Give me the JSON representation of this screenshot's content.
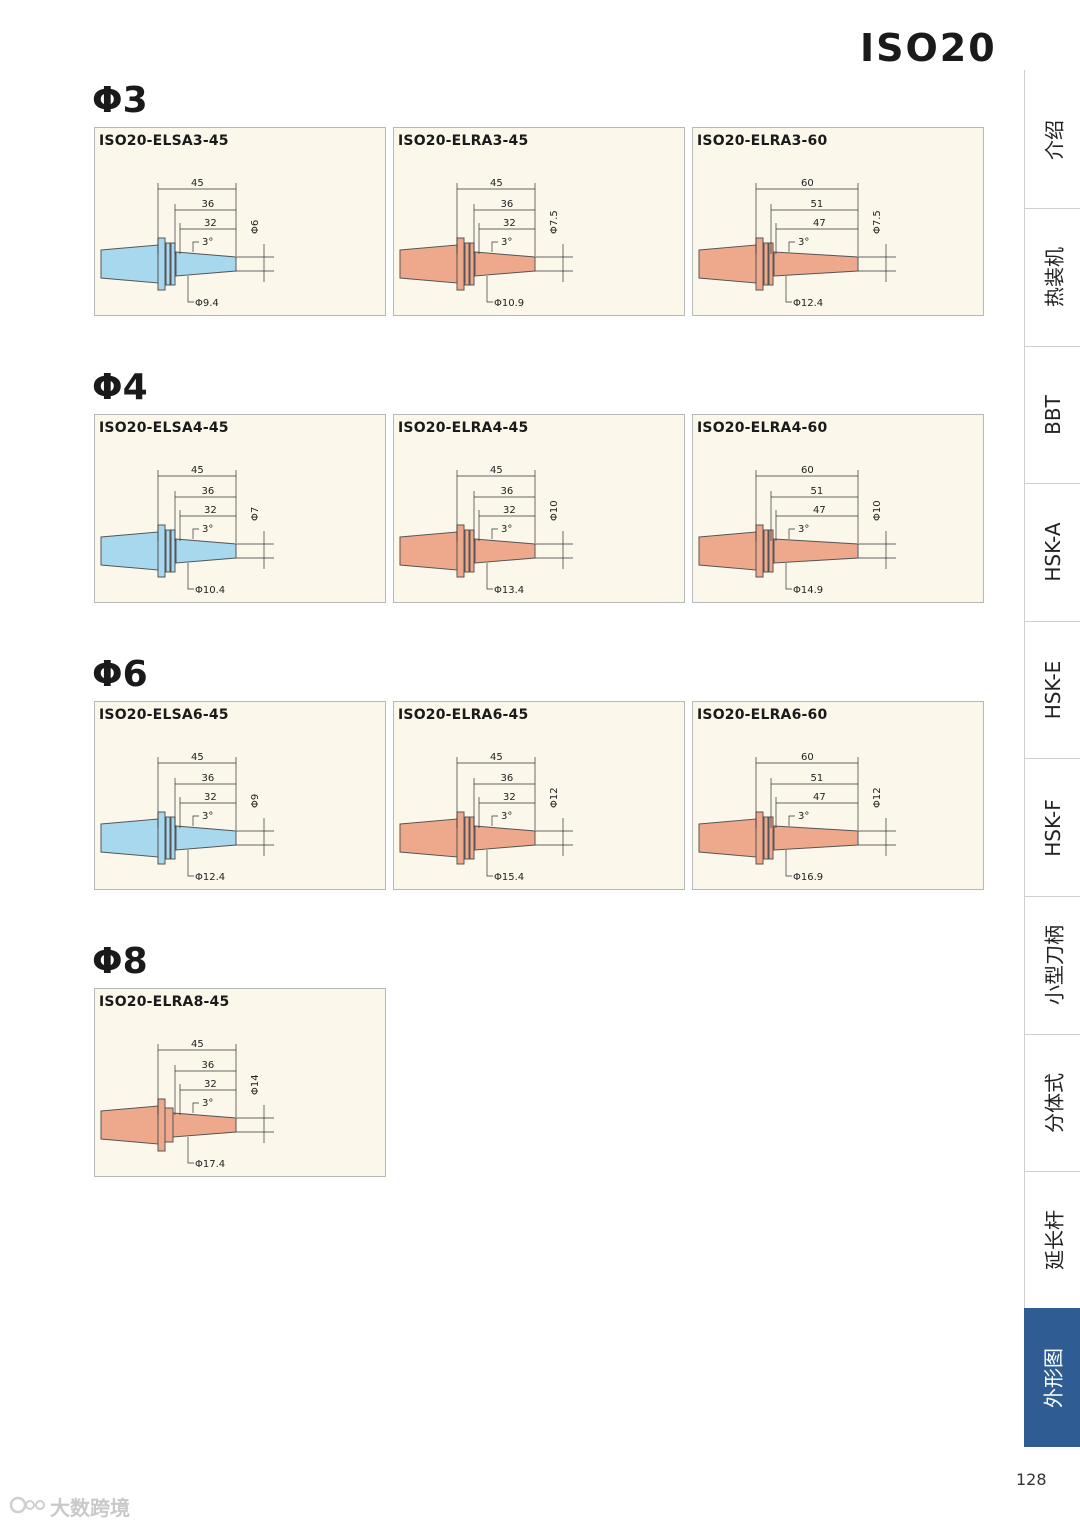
{
  "page_title": "ISO20",
  "page_number": "128",
  "watermark": "大数跨境",
  "colors": {
    "blue": "#a7d8ee",
    "salmon": "#eea98c",
    "accent": "#2f5d93"
  },
  "side_nav": {
    "items": [
      {
        "label": "介绍"
      },
      {
        "label": "热装机"
      },
      {
        "label": "BBT"
      },
      {
        "label": "HSK-A"
      },
      {
        "label": "HSK-E"
      },
      {
        "label": "HSK-F"
      },
      {
        "label": "小型刀柄"
      },
      {
        "label": "分体式"
      },
      {
        "label": "延长杆"
      },
      {
        "label": "外形图"
      }
    ],
    "active": "外形图"
  },
  "sections": [
    {
      "heading": "Φ3",
      "cards": [
        {
          "title": "ISO20-ELSA3-45",
          "color": "blue",
          "rings": true,
          "L": "45",
          "L2": "36",
          "L3": "32",
          "angle": "3°",
          "d": "Φ6",
          "D": "Φ9.4"
        },
        {
          "title": "ISO20-ELRA3-45",
          "color": "salmon",
          "rings": true,
          "L": "45",
          "L2": "36",
          "L3": "32",
          "angle": "3°",
          "d": "Φ7.5",
          "D": "Φ10.9"
        },
        {
          "title": "ISO20-ELRA3-60",
          "color": "salmon",
          "rings": true,
          "L": "60",
          "L2": "51",
          "L3": "47",
          "angle": "3°",
          "d": "Φ7.5",
          "D": "Φ12.4"
        }
      ]
    },
    {
      "heading": "Φ4",
      "cards": [
        {
          "title": "ISO20-ELSA4-45",
          "color": "blue",
          "rings": true,
          "L": "45",
          "L2": "36",
          "L3": "32",
          "angle": "3°",
          "d": "Φ7",
          "D": "Φ10.4"
        },
        {
          "title": "ISO20-ELRA4-45",
          "color": "salmon",
          "rings": true,
          "L": "45",
          "L2": "36",
          "L3": "32",
          "angle": "3°",
          "d": "Φ10",
          "D": "Φ13.4"
        },
        {
          "title": "ISO20-ELRA4-60",
          "color": "salmon",
          "rings": true,
          "L": "60",
          "L2": "51",
          "L3": "47",
          "angle": "3°",
          "d": "Φ10",
          "D": "Φ14.9"
        }
      ]
    },
    {
      "heading": "Φ6",
      "cards": [
        {
          "title": "ISO20-ELSA6-45",
          "color": "blue",
          "rings": true,
          "L": "45",
          "L2": "36",
          "L3": "32",
          "angle": "3°",
          "d": "Φ9",
          "D": "Φ12.4"
        },
        {
          "title": "ISO20-ELRA6-45",
          "color": "salmon",
          "rings": true,
          "L": "45",
          "L2": "36",
          "L3": "32",
          "angle": "3°",
          "d": "Φ12",
          "D": "Φ15.4"
        },
        {
          "title": "ISO20-ELRA6-60",
          "color": "salmon",
          "rings": true,
          "L": "60",
          "L2": "51",
          "L3": "47",
          "angle": "3°",
          "d": "Φ12",
          "D": "Φ16.9"
        }
      ]
    },
    {
      "heading": "Φ8",
      "cards": [
        {
          "title": "ISO20-ELRA8-45",
          "color": "salmon",
          "rings": false,
          "L": "45",
          "L2": "36",
          "L3": "32",
          "angle": "3°",
          "d": "Φ14",
          "D": "Φ17.4"
        }
      ]
    }
  ]
}
